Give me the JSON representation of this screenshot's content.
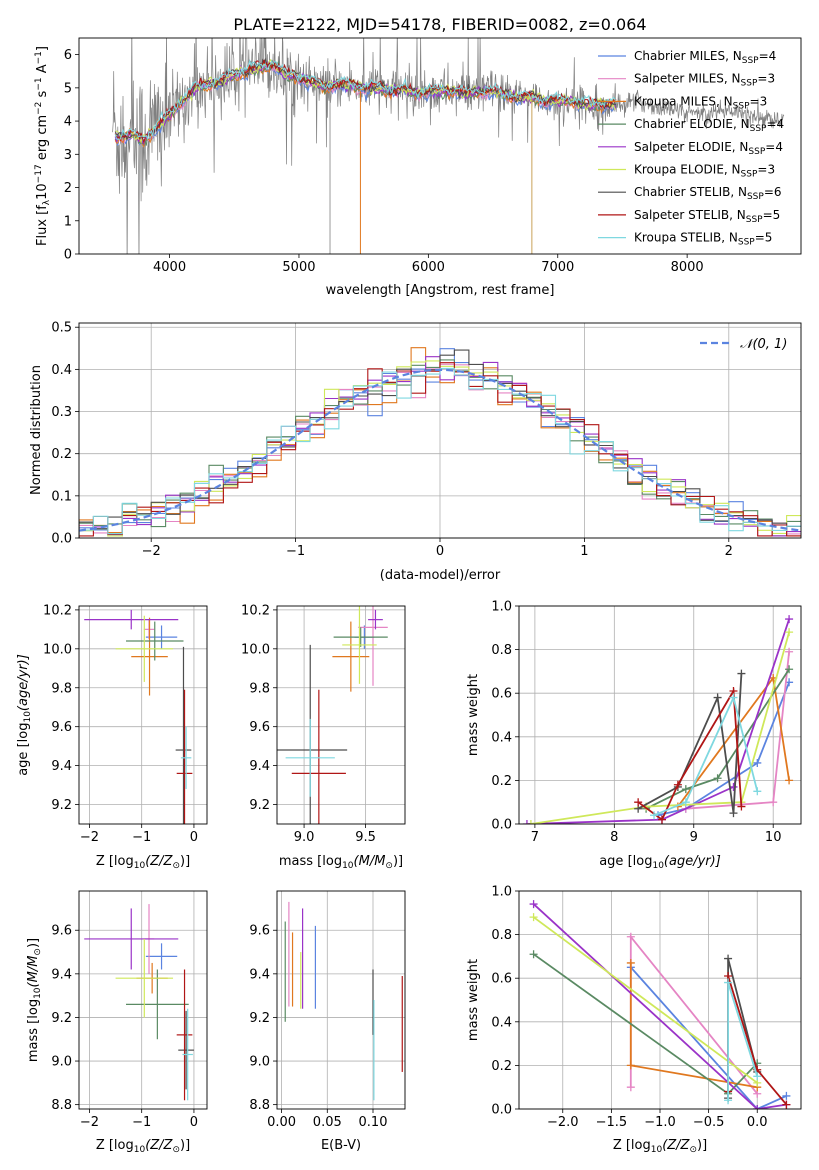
{
  "figure": {
    "title": "PLATE=2122, MJD=54178, FIBERID=0082, z=0.064"
  },
  "colors": [
    "#5b84e0",
    "#e585c4",
    "#e0781f",
    "#5a8a63",
    "#9a33c8",
    "#cfe85a",
    "#4d4d4d",
    "#b01616",
    "#7fd8e0"
  ],
  "models": [
    {
      "label": "Chabrier MILES, N",
      "n": "=4"
    },
    {
      "label": "Salpeter MILES, N",
      "n": "=3"
    },
    {
      "label": "Kroupa MILES, N",
      "n": "=3"
    },
    {
      "label": "Chabrier ELODIE, N",
      "n": "=4"
    },
    {
      "label": "Salpeter ELODIE, N",
      "n": "=4"
    },
    {
      "label": "Kroupa ELODIE, N",
      "n": "=3"
    },
    {
      "label": "Chabrier STELIB, N",
      "n": "=6"
    },
    {
      "label": "Salpeter STELIB, N",
      "n": "=5"
    },
    {
      "label": "Kroupa STELIB, N",
      "n": "=5"
    }
  ],
  "ssp_sub": "SSP",
  "chart_data": [
    {
      "id": "spectrum",
      "type": "line",
      "xlabel": "wavelength [Angstrom, rest frame]",
      "ylabel": "Flux [f",
      "ylabel_rest": "10",
      "ylabel_exp1": "−17",
      "ylabel_mid": " erg cm",
      "ylabel_exp2": "−2",
      "ylabel_mid2": " s",
      "ylabel_exp3": "−1",
      "ylabel_end": " A",
      "ylabel_exp4": "−1",
      "ylabel_close": "]",
      "xlim": [
        3300,
        8880
      ],
      "ylim": [
        0,
        6.5
      ],
      "xticks": [
        4000,
        5000,
        6000,
        7000,
        8000
      ],
      "yticks": [
        0,
        1,
        2,
        3,
        4,
        5,
        6
      ],
      "continuum": [
        [
          3580,
          3.5
        ],
        [
          3700,
          3.6
        ],
        [
          3800,
          3.4
        ],
        [
          3900,
          3.8
        ],
        [
          4000,
          4.2
        ],
        [
          4100,
          4.6
        ],
        [
          4200,
          5.0
        ],
        [
          4300,
          5.1
        ],
        [
          4400,
          5.2
        ],
        [
          4500,
          5.4
        ],
        [
          4600,
          5.5
        ],
        [
          4700,
          5.6
        ],
        [
          4800,
          5.7
        ],
        [
          4900,
          5.4
        ],
        [
          5000,
          5.3
        ],
        [
          5100,
          5.2
        ],
        [
          5200,
          5.0
        ],
        [
          5300,
          5.1
        ],
        [
          5400,
          5.1
        ],
        [
          5500,
          5.0
        ],
        [
          5600,
          5.0
        ],
        [
          5700,
          4.9
        ],
        [
          5800,
          5.0
        ],
        [
          5900,
          4.8
        ],
        [
          6000,
          4.9
        ],
        [
          6100,
          4.9
        ],
        [
          6200,
          4.9
        ],
        [
          6300,
          4.8
        ],
        [
          6400,
          4.9
        ],
        [
          6500,
          4.9
        ],
        [
          6600,
          4.8
        ],
        [
          6700,
          4.7
        ],
        [
          6800,
          4.7
        ],
        [
          6900,
          4.6
        ],
        [
          7000,
          4.6
        ],
        [
          7100,
          4.6
        ],
        [
          7200,
          4.5
        ],
        [
          7300,
          4.5
        ],
        [
          7400,
          4.5
        ],
        [
          7500,
          4.5
        ],
        [
          7600,
          4.6
        ],
        [
          7700,
          4.5
        ],
        [
          7800,
          4.4
        ],
        [
          7900,
          4.3
        ],
        [
          8000,
          4.3
        ],
        [
          8100,
          4.2
        ],
        [
          8200,
          4.3
        ],
        [
          8300,
          4.3
        ],
        [
          8400,
          4.3
        ],
        [
          8500,
          4.2
        ],
        [
          8600,
          4.1
        ],
        [
          8700,
          4.0
        ],
        [
          8750,
          4.0
        ]
      ]
    },
    {
      "id": "residuals",
      "type": "area",
      "xlabel": "(data-model)/error",
      "ylabel": "Normed distribution",
      "xlim": [
        -2.5,
        2.5
      ],
      "ylim": [
        0,
        0.51
      ],
      "xticks": [
        -2,
        -1,
        0,
        1,
        2
      ],
      "yticks": [
        0.0,
        0.1,
        0.2,
        0.3,
        0.4,
        0.5
      ],
      "legend": "N(0,1)",
      "legend_text": "𝒩(0, 1)",
      "legend_loc": "upper right",
      "bin_width": 0.1
    },
    {
      "id": "age_vs_Z",
      "type": "scatter",
      "xlabel": "Z [log",
      "xlabel_sub": "10",
      "xlabel_end": "(Z/Z",
      "xlabel_sun": "⊙",
      "xlabel_close": ")]",
      "ylabel": "age  [log",
      "ylabel_sub": "10",
      "ylabel_end": "(age/yr)]",
      "xlim": [
        -2.2,
        0.25
      ],
      "ylim": [
        9.1,
        10.22
      ],
      "xticks": [
        -2,
        -1,
        0
      ],
      "yticks": [
        9.2,
        9.4,
        9.6,
        9.8,
        10.0,
        10.2
      ],
      "points": [
        {
          "x": -0.62,
          "xerr": 0.3,
          "y": 10.06,
          "yerr": 0.06
        },
        {
          "x": -0.86,
          "xerr": 0.1,
          "y": 10.1,
          "yerr": 0.05
        },
        {
          "x": -0.85,
          "xerr": 0.35,
          "y": 9.96,
          "yerr": 0.2
        },
        {
          "x": -0.75,
          "xerr": 0.55,
          "y": 10.04,
          "yerr": 0.1
        },
        {
          "x": -1.2,
          "xerr": 0.9,
          "y": 10.15,
          "yerr": 0.05
        },
        {
          "x": -0.95,
          "xerr": 0.55,
          "y": 10.0,
          "yerr": 0.17
        },
        {
          "x": -0.2,
          "xerr": 0.15,
          "y": 9.48,
          "yerr": 0.53
        },
        {
          "x": -0.18,
          "xerr": 0.15,
          "y": 9.36,
          "yerr": 0.43
        },
        {
          "x": -0.15,
          "xerr": 0.1,
          "y": 9.44,
          "yerr": 0.16
        }
      ]
    },
    {
      "id": "age_vs_mass",
      "type": "scatter",
      "xlabel": "mass [log",
      "xlabel_sub": "10",
      "xlabel_end": "(M/M",
      "xlabel_sun": "⊙",
      "xlabel_close": ")]",
      "xlim": [
        8.78,
        9.82
      ],
      "ylim": [
        9.1,
        10.22
      ],
      "xticks": [
        9.0,
        9.5
      ],
      "yticks": [
        9.2,
        9.4,
        9.6,
        9.8,
        10.0,
        10.2
      ],
      "points": [
        {
          "x": 9.49,
          "xerr": 0.08,
          "y": 10.06,
          "yerr": 0.06
        },
        {
          "x": 9.56,
          "xerr": 0.12,
          "y": 10.11,
          "yerr": 0.3
        },
        {
          "x": 9.38,
          "xerr": 0.15,
          "y": 9.96,
          "yerr": 0.18
        },
        {
          "x": 9.46,
          "xerr": 0.22,
          "y": 10.06,
          "yerr": 0.05
        },
        {
          "x": 9.58,
          "xerr": 0.06,
          "y": 10.15,
          "yerr": 0.05
        },
        {
          "x": 9.45,
          "xerr": 0.14,
          "y": 10.02,
          "yerr": 0.2
        },
        {
          "x": 9.05,
          "xerr": 0.3,
          "y": 9.48,
          "yerr": 0.54
        },
        {
          "x": 9.12,
          "xerr": 0.22,
          "y": 9.36,
          "yerr": 0.43
        },
        {
          "x": 9.05,
          "xerr": 0.2,
          "y": 9.44,
          "yerr": 0.2
        }
      ]
    },
    {
      "id": "weight_vs_age",
      "type": "line",
      "xlabel": "age  [log",
      "xlabel_sub": "10",
      "xlabel_end": "(age/yr)]",
      "ylabel": "mass weight",
      "xlim": [
        6.8,
        10.35
      ],
      "ylim": [
        0,
        1.0
      ],
      "xticks": [
        7,
        8,
        9,
        10
      ],
      "yticks": [
        0.0,
        0.2,
        0.4,
        0.6,
        0.8,
        1.0
      ],
      "series": [
        {
          "points": [
            [
              8.55,
              0.04
            ],
            [
              8.9,
              0.07
            ],
            [
              9.8,
              0.28
            ],
            [
              10.2,
              0.65
            ]
          ]
        },
        {
          "points": [
            [
              8.9,
              0.07
            ],
            [
              10.0,
              0.1
            ],
            [
              10.2,
              0.79
            ]
          ]
        },
        {
          "points": [
            [
              8.8,
              0.08
            ],
            [
              10.0,
              0.67
            ],
            [
              10.2,
              0.2
            ]
          ]
        },
        {
          "points": [
            [
              8.4,
              0.07
            ],
            [
              8.9,
              0.16
            ],
            [
              9.3,
              0.21
            ],
            [
              10.2,
              0.71
            ]
          ]
        },
        {
          "points": [
            [
              6.9,
              0.0
            ],
            [
              8.6,
              0.02
            ],
            [
              9.5,
              0.17
            ],
            [
              10.2,
              0.94
            ]
          ]
        },
        {
          "points": [
            [
              6.95,
              0.0
            ],
            [
              8.4,
              0.08
            ],
            [
              9.6,
              0.1
            ],
            [
              10.2,
              0.88
            ]
          ]
        },
        {
          "points": [
            [
              8.3,
              0.07
            ],
            [
              8.8,
              0.17
            ],
            [
              9.3,
              0.58
            ],
            [
              9.5,
              0.05
            ],
            [
              9.6,
              0.69
            ]
          ]
        },
        {
          "points": [
            [
              8.3,
              0.1
            ],
            [
              8.6,
              0.02
            ],
            [
              8.8,
              0.18
            ],
            [
              9.5,
              0.61
            ],
            [
              9.6,
              0.08
            ]
          ]
        },
        {
          "points": [
            [
              8.5,
              0.04
            ],
            [
              8.9,
              0.1
            ],
            [
              9.5,
              0.58
            ],
            [
              9.8,
              0.15
            ]
          ]
        }
      ]
    },
    {
      "id": "mass_vs_Z",
      "type": "scatter",
      "xlabel": "Z [log",
      "xlabel_sub": "10",
      "xlabel_end": "(Z/Z",
      "xlabel_sun": "⊙",
      "xlabel_close": ")]",
      "ylabel": "mass [log",
      "ylabel_sub": "10",
      "ylabel_end": "(M/M",
      "ylabel_sun": "⊙",
      "ylabel_close": ")]",
      "xlim": [
        -2.2,
        0.25
      ],
      "ylim": [
        8.78,
        9.78
      ],
      "xticks": [
        -2,
        -1,
        0
      ],
      "yticks": [
        8.8,
        9.0,
        9.2,
        9.4,
        9.6
      ],
      "points": [
        {
          "x": -0.62,
          "xerr": 0.3,
          "y": 9.48,
          "yerr": 0.06
        },
        {
          "x": -0.86,
          "xerr": 0.1,
          "y": 9.56,
          "yerr": 0.16
        },
        {
          "x": -0.8,
          "xerr": 0.3,
          "y": 9.38,
          "yerr": 0.07
        },
        {
          "x": -0.7,
          "xerr": 0.6,
          "y": 9.26,
          "yerr": 0.16
        },
        {
          "x": -1.2,
          "xerr": 0.9,
          "y": 9.56,
          "yerr": 0.14
        },
        {
          "x": -0.95,
          "xerr": 0.55,
          "y": 9.38,
          "yerr": 0.18
        },
        {
          "x": -0.15,
          "xerr": 0.15,
          "y": 9.05,
          "yerr": 0.18
        },
        {
          "x": -0.18,
          "xerr": 0.15,
          "y": 9.12,
          "yerr": 0.3
        },
        {
          "x": -0.12,
          "xerr": 0.1,
          "y": 9.03,
          "yerr": 0.21
        }
      ]
    },
    {
      "id": "mass_vs_EBV",
      "type": "scatter",
      "xlabel": "E(B-V)",
      "xlim": [
        -0.005,
        0.135
      ],
      "ylim": [
        8.78,
        9.78
      ],
      "xticks": [
        0.0,
        0.05,
        0.1
      ],
      "xticklabels": [
        "0.00",
        "0.05",
        "0.10"
      ],
      "yticks": [
        8.8,
        9.0,
        9.2,
        9.4,
        9.6
      ],
      "points": [
        {
          "x": 0.037,
          "y": 9.43,
          "yerr": 0.19
        },
        {
          "x": 0.008,
          "y": 9.49,
          "yerr": 0.24
        },
        {
          "x": 0.012,
          "y": 9.42,
          "yerr": 0.17
        },
        {
          "x": 0.004,
          "y": 9.41,
          "yerr": 0.23
        },
        {
          "x": 0.023,
          "y": 9.47,
          "yerr": 0.23
        },
        {
          "x": 0.021,
          "y": 9.37,
          "yerr": 0.13
        },
        {
          "x": 0.1,
          "y": 9.27,
          "yerr": 0.15
        },
        {
          "x": 0.132,
          "y": 9.17,
          "yerr": 0.22
        },
        {
          "x": 0.101,
          "y": 9.05,
          "yerr": 0.23
        }
      ]
    },
    {
      "id": "weight_vs_Z",
      "type": "line",
      "xlabel": "Z [log",
      "xlabel_sub": "10",
      "xlabel_end": "(Z/Z",
      "xlabel_sun": "⊙",
      "xlabel_close": ")]",
      "ylabel": "mass weight",
      "xlim": [
        -2.45,
        0.45
      ],
      "ylim": [
        0,
        1.0
      ],
      "xticks": [
        -2.0,
        -1.5,
        -1.0,
        -0.5,
        0.0
      ],
      "xticklabels": [
        "−2.0",
        "−1.5",
        "−1.0",
        "−0.5",
        "0.0"
      ],
      "yticks": [
        0.0,
        0.2,
        0.4,
        0.6,
        0.8,
        1.0
      ],
      "series": [
        {
          "points": [
            [
              -1.3,
              0.65
            ],
            [
              0.0,
              0.0
            ],
            [
              0.3,
              0.06
            ]
          ]
        },
        {
          "points": [
            [
              -1.3,
              0.1
            ],
            [
              -1.3,
              0.79
            ],
            [
              0.0,
              0.07
            ]
          ]
        },
        {
          "points": [
            [
              -1.3,
              0.67
            ],
            [
              -1.3,
              0.2
            ],
            [
              0.0,
              0.1
            ]
          ]
        },
        {
          "points": [
            [
              -2.3,
              0.71
            ],
            [
              -0.3,
              0.07
            ],
            [
              0.0,
              0.21
            ]
          ]
        },
        {
          "points": [
            [
              -2.3,
              0.94
            ],
            [
              0.0,
              0.0
            ],
            [
              0.3,
              0.02
            ]
          ]
        },
        {
          "points": [
            [
              -2.3,
              0.88
            ],
            [
              0.0,
              0.12
            ]
          ]
        },
        {
          "points": [
            [
              -0.3,
              0.05
            ],
            [
              -0.3,
              0.69
            ],
            [
              0.0,
              0.17
            ]
          ]
        },
        {
          "points": [
            [
              -0.3,
              0.08
            ],
            [
              -0.3,
              0.61
            ],
            [
              0.0,
              0.18
            ],
            [
              0.3,
              0.02
            ]
          ]
        },
        {
          "points": [
            [
              -0.3,
              0.04
            ],
            [
              -0.3,
              0.58
            ],
            [
              0.0,
              0.15
            ]
          ]
        }
      ]
    }
  ]
}
